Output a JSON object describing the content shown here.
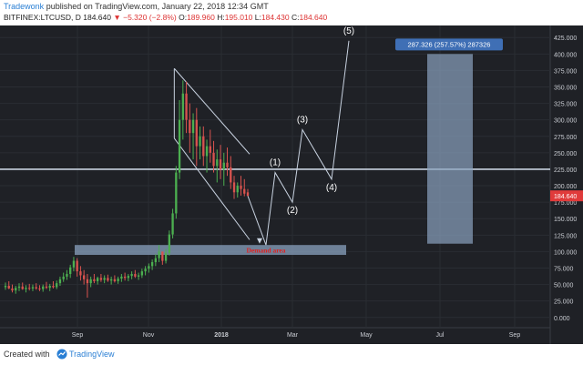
{
  "header": {
    "author": "Tradewonk",
    "published_text": "published on TradingView.com, January 22, 2018 12:34 GMT",
    "symbol": "BITFINEX:LTCUSD, D",
    "last": "184.640",
    "change": "▼ −5.320 (−2.8%)",
    "o_label": "O:",
    "o": "189.960",
    "h_label": "H:",
    "h": "195.010",
    "l_label": "L:",
    "l": "184.430",
    "c_label": "C:",
    "c": "184.640"
  },
  "footer": {
    "created_with": "Created with",
    "brand": "TradingView"
  },
  "colors": {
    "background": "#1f2126",
    "up": "#4caf50",
    "down": "#d9534f",
    "line": "#c8d2e0",
    "zone": "#8aa2bf",
    "price_tag": "#e03b3b",
    "box_label": "#3f6fb5"
  },
  "chart_data": {
    "type": "candlestick",
    "symbol": "BITFINEX:LTCUSD",
    "timeframe": "D",
    "xaxis_ticks": [
      "Sep",
      "Nov",
      "2018",
      "Mar",
      "May",
      "Jul",
      "Sep"
    ],
    "yaxis_ticks": [
      "425.000",
      "400.000",
      "375.000",
      "350.000",
      "325.000",
      "300.000",
      "275.000",
      "250.000",
      "225.000",
      "200.000",
      "175.000",
      "150.000",
      "125.000",
      "100.000",
      "75.000",
      "50.000",
      "25.000",
      "0.000"
    ],
    "ylim": [
      -10,
      435
    ],
    "last_price": "184.640",
    "horizontal_line": 225,
    "demand_zone": {
      "label": "Demand area",
      "low": 95,
      "high": 110
    },
    "target_box": {
      "label": "287.326 (257.57%) 287326",
      "low": 112,
      "high": 400
    },
    "wave_labels": [
      {
        "label": "(1)",
        "value": 220
      },
      {
        "label": "(2)",
        "value": 175
      },
      {
        "label": "(3)",
        "value": 285
      },
      {
        "label": "(4)",
        "value": 210
      },
      {
        "label": "(5)",
        "value": 420
      }
    ],
    "ohlc_series": [
      [
        46,
        53,
        42,
        48
      ],
      [
        48,
        55,
        43,
        44
      ],
      [
        44,
        50,
        38,
        41
      ],
      [
        41,
        48,
        36,
        45
      ],
      [
        45,
        52,
        40,
        47
      ],
      [
        47,
        53,
        42,
        43
      ],
      [
        43,
        49,
        38,
        45
      ],
      [
        45,
        51,
        41,
        44
      ],
      [
        44,
        50,
        40,
        46
      ],
      [
        46,
        52,
        42,
        44
      ],
      [
        44,
        49,
        40,
        43
      ],
      [
        43,
        50,
        39,
        47
      ],
      [
        47,
        54,
        43,
        45
      ],
      [
        45,
        51,
        40,
        48
      ],
      [
        48,
        55,
        44,
        46
      ],
      [
        46,
        56,
        43,
        52
      ],
      [
        52,
        62,
        48,
        58
      ],
      [
        58,
        68,
        54,
        62
      ],
      [
        62,
        72,
        57,
        66
      ],
      [
        66,
        80,
        60,
        76
      ],
      [
        76,
        92,
        70,
        86
      ],
      [
        86,
        90,
        62,
        70
      ],
      [
        70,
        78,
        56,
        64
      ],
      [
        64,
        72,
        50,
        58
      ],
      [
        58,
        66,
        30,
        52
      ],
      [
        52,
        62,
        46,
        58
      ],
      [
        58,
        66,
        52,
        55
      ],
      [
        55,
        62,
        50,
        60
      ],
      [
        60,
        66,
        54,
        57
      ],
      [
        57,
        64,
        52,
        60
      ],
      [
        60,
        65,
        54,
        56
      ],
      [
        56,
        62,
        50,
        58
      ],
      [
        58,
        64,
        53,
        55
      ],
      [
        55,
        62,
        51,
        59
      ],
      [
        59,
        66,
        54,
        62
      ],
      [
        62,
        68,
        56,
        60
      ],
      [
        60,
        66,
        55,
        63
      ],
      [
        63,
        70,
        58,
        66
      ],
      [
        66,
        72,
        60,
        62
      ],
      [
        62,
        68,
        57,
        64
      ],
      [
        64,
        74,
        60,
        70
      ],
      [
        70,
        78,
        64,
        74
      ],
      [
        74,
        82,
        68,
        78
      ],
      [
        78,
        88,
        72,
        84
      ],
      [
        84,
        96,
        78,
        90
      ],
      [
        90,
        110,
        84,
        100
      ],
      [
        100,
        100,
        80,
        86
      ],
      [
        86,
        104,
        82,
        98
      ],
      [
        98,
        132,
        94,
        126
      ],
      [
        126,
        165,
        120,
        158
      ],
      [
        158,
        230,
        150,
        220
      ],
      [
        220,
        330,
        210,
        300
      ],
      [
        300,
        360,
        270,
        340
      ],
      [
        340,
        358,
        280,
        300
      ],
      [
        300,
        325,
        250,
        280
      ],
      [
        280,
        310,
        240,
        300
      ],
      [
        300,
        318,
        230,
        260
      ],
      [
        260,
        290,
        240,
        275
      ],
      [
        275,
        290,
        230,
        245
      ],
      [
        245,
        270,
        220,
        260
      ],
      [
        260,
        285,
        235,
        250
      ],
      [
        250,
        268,
        220,
        230
      ],
      [
        230,
        255,
        205,
        240
      ],
      [
        240,
        262,
        210,
        225
      ],
      [
        225,
        250,
        200,
        235
      ],
      [
        235,
        258,
        215,
        228
      ],
      [
        228,
        245,
        195,
        205
      ],
      [
        205,
        215,
        180,
        190
      ],
      [
        190,
        205,
        182,
        200
      ],
      [
        200,
        215,
        185,
        195
      ],
      [
        195,
        210,
        184,
        188
      ],
      [
        189.96,
        195.01,
        184.43,
        184.64
      ]
    ]
  }
}
